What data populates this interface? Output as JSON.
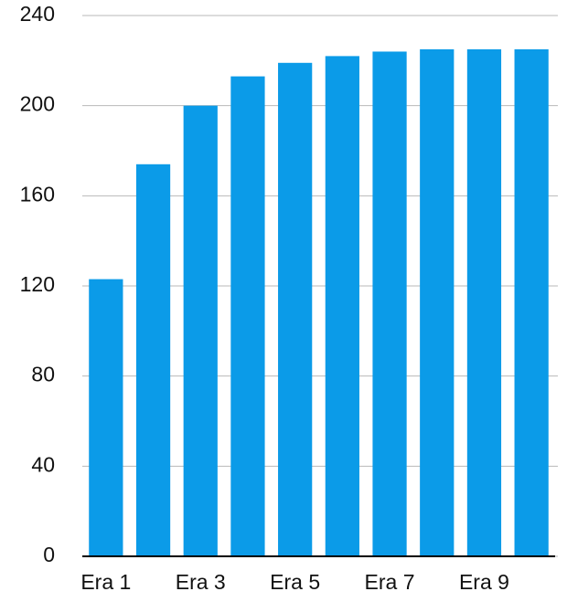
{
  "chart_data": {
    "type": "bar",
    "categories": [
      "Era 1",
      null,
      "Era 3",
      null,
      "Era 5",
      null,
      "Era 7",
      null,
      "Era 9",
      null
    ],
    "values": [
      123,
      174,
      200,
      213,
      219,
      222,
      224,
      225,
      225,
      225
    ],
    "color": "#0b9be8",
    "ylim": [
      0,
      240
    ],
    "yticks": [
      0,
      40,
      80,
      120,
      160,
      200,
      240
    ],
    "grid": true
  }
}
